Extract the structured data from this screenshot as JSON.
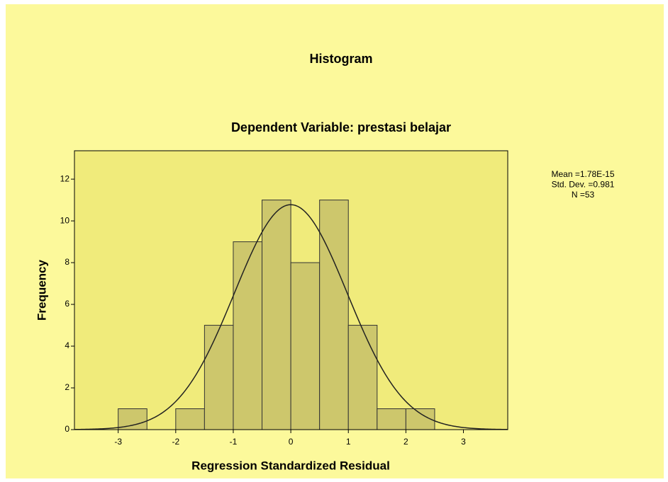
{
  "chart_data": {
    "type": "histogram",
    "title": "Histogram",
    "subtitle": "Dependent Variable: prestasi belajar",
    "xlabel": "Regression Standardized Residual",
    "ylabel": "Frequency",
    "bins": [
      -3,
      -2.5,
      -2,
      -1.5,
      -1,
      -0.5,
      0,
      0.5,
      1,
      1.5,
      2,
      2.5
    ],
    "values": [
      1,
      0,
      1,
      5,
      9,
      11,
      8,
      11,
      5,
      1,
      1
    ],
    "color": "#cdc76c",
    "xlim": [
      -3.76,
      3.77
    ],
    "ylim": [
      0,
      13.36
    ],
    "xticks": [
      -3,
      -2,
      -1,
      0,
      1,
      2,
      3
    ],
    "yticks": [
      0,
      2,
      4,
      6,
      8,
      10,
      12
    ],
    "stats": [
      {
        "value": 1.78e-15,
        "label": "Mean =1.78E-15"
      },
      {
        "value": 0.981,
        "label": "Std. Dev. =0.981"
      },
      {
        "value": 53,
        "label": "N =53"
      }
    ]
  }
}
